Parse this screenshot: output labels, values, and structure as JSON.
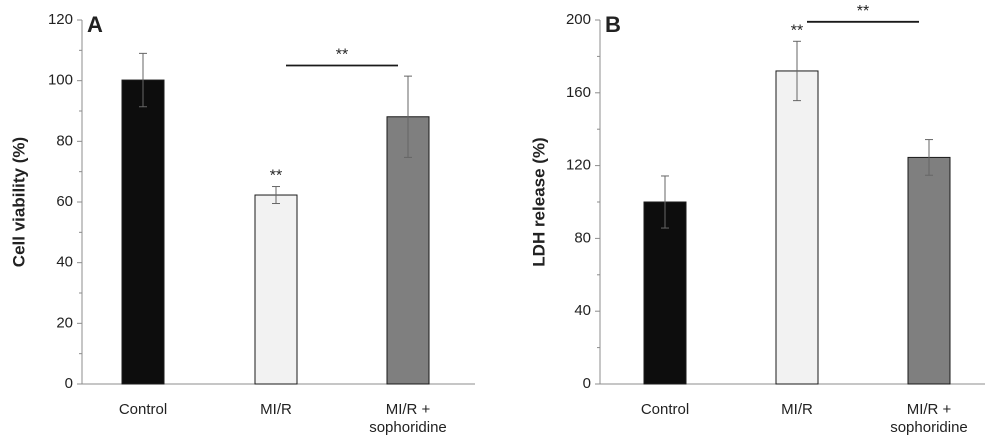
{
  "chart_data": [
    {
      "panel": "A",
      "type": "bar",
      "ylabel": "Cell viability (%)",
      "ylim": [
        0,
        120
      ],
      "yticks": [
        0,
        20,
        40,
        60,
        80,
        100,
        120
      ],
      "categories": [
        {
          "lines": [
            "Control"
          ]
        },
        {
          "lines": [
            "MI/R"
          ]
        },
        {
          "lines": [
            "MI/R +",
            "sophoridine"
          ]
        }
      ],
      "values": [
        100.2,
        62.3,
        88.1
      ],
      "errors": [
        8.8,
        2.8,
        13.4
      ],
      "colors": [
        "#0d0d0d",
        "#f2f2f2",
        "#7f7f7f"
      ],
      "annotations": [
        {
          "text": "**",
          "over": 1,
          "type": "bar-star"
        },
        {
          "text": "**",
          "from": 1,
          "to": 2,
          "y": 105,
          "type": "bracket"
        }
      ]
    },
    {
      "panel": "B",
      "type": "bar",
      "ylabel": "LDH release (%)",
      "ylim": [
        0,
        200
      ],
      "yticks": [
        0,
        40,
        80,
        120,
        160,
        200
      ],
      "categories": [
        {
          "lines": [
            "Control"
          ]
        },
        {
          "lines": [
            "MI/R"
          ]
        },
        {
          "lines": [
            "MI/R +",
            "sophoridine"
          ]
        }
      ],
      "values": [
        100,
        172,
        124.5
      ],
      "errors": [
        14.3,
        16.3,
        9.8
      ],
      "colors": [
        "#0d0d0d",
        "#f2f2f2",
        "#7f7f7f"
      ],
      "annotations": [
        {
          "text": "**",
          "over": 1,
          "type": "bar-star"
        },
        {
          "text": "**",
          "from": 1,
          "to": 2,
          "y": 199,
          "type": "bracket"
        }
      ]
    }
  ]
}
